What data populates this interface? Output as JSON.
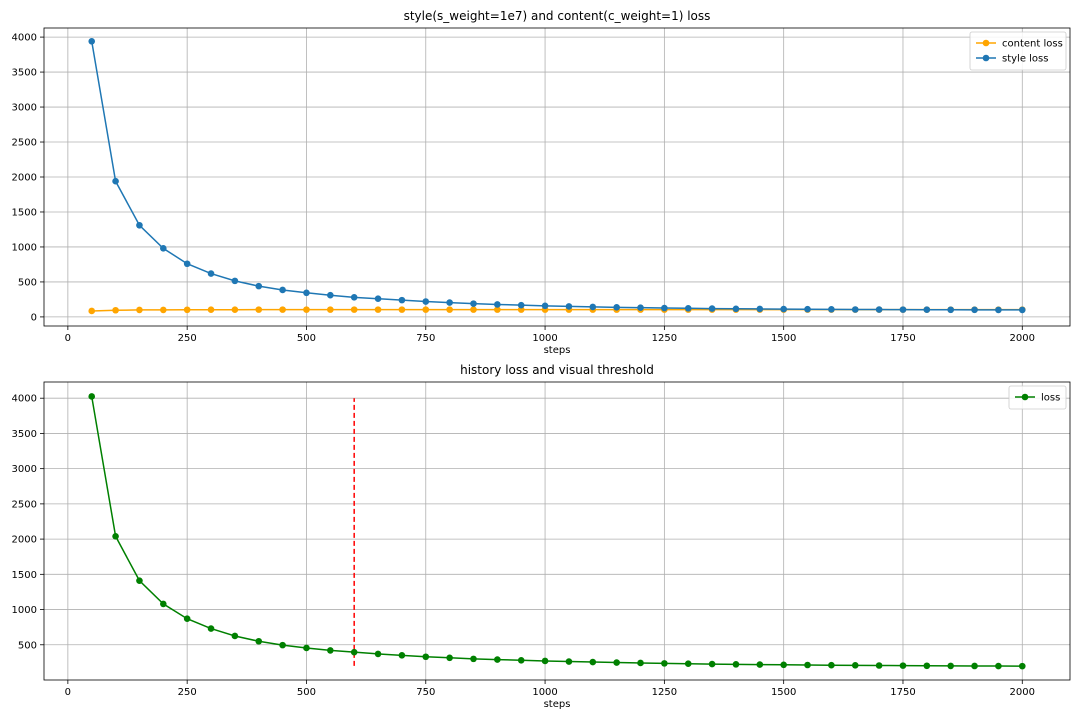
{
  "chart_data": [
    {
      "type": "line",
      "title": "style(s_weight=1e7) and content(c_weight=1) loss",
      "xlabel": "steps",
      "ylabel": "",
      "xlim": [
        -50,
        2100
      ],
      "ylim": [
        -130,
        4130
      ],
      "xticks": [
        0,
        250,
        500,
        750,
        1000,
        1250,
        1500,
        1750,
        2000
      ],
      "yticks": [
        0,
        500,
        1000,
        1500,
        2000,
        2500,
        3000,
        3500,
        4000
      ],
      "grid": true,
      "legend": "top-right",
      "x": [
        50,
        100,
        150,
        200,
        250,
        300,
        350,
        400,
        450,
        500,
        550,
        600,
        650,
        700,
        750,
        800,
        850,
        900,
        950,
        1000,
        1050,
        1100,
        1150,
        1200,
        1250,
        1300,
        1350,
        1400,
        1450,
        1500,
        1550,
        1600,
        1650,
        1700,
        1750,
        1800,
        1850,
        1900,
        1950,
        2000
      ],
      "series": [
        {
          "name": "content loss",
          "color": "#ffa500",
          "values": [
            85,
            95,
            100,
            100,
            102,
            103,
            103,
            104,
            104,
            104,
            104,
            104,
            104,
            104,
            104,
            104,
            104,
            104,
            104,
            104,
            104,
            104,
            104,
            104,
            104,
            104,
            104,
            104,
            104,
            104,
            104,
            104,
            104,
            104,
            104,
            104,
            104,
            104,
            104,
            104
          ]
        },
        {
          "name": "style loss",
          "color": "#1f77b4",
          "values": [
            3940,
            1940,
            1310,
            980,
            760,
            620,
            515,
            440,
            385,
            345,
            310,
            280,
            260,
            240,
            220,
            205,
            190,
            178,
            168,
            158,
            150,
            143,
            137,
            132,
            127,
            123,
            119,
            116,
            114,
            112,
            110,
            108,
            106,
            105,
            104,
            103,
            102,
            101,
            100,
            100
          ]
        }
      ]
    },
    {
      "type": "line",
      "title": "history loss and visual threshold",
      "xlabel": "steps",
      "ylabel": "",
      "xlim": [
        -50,
        2100
      ],
      "ylim": [
        0,
        4230
      ],
      "xticks": [
        0,
        250,
        500,
        750,
        1000,
        1250,
        1500,
        1750,
        2000
      ],
      "yticks": [
        500,
        1000,
        1500,
        2000,
        2500,
        3000,
        3500,
        4000
      ],
      "grid": true,
      "legend": "top-right",
      "x": [
        50,
        100,
        150,
        200,
        250,
        300,
        350,
        400,
        450,
        500,
        550,
        600,
        650,
        700,
        750,
        800,
        850,
        900,
        950,
        1000,
        1050,
        1100,
        1150,
        1200,
        1250,
        1300,
        1350,
        1400,
        1450,
        1500,
        1550,
        1600,
        1650,
        1700,
        1750,
        1800,
        1850,
        1900,
        1950,
        2000
      ],
      "series": [
        {
          "name": "loss",
          "color": "#008000",
          "values": [
            4025,
            2040,
            1410,
            1080,
            870,
            730,
            625,
            550,
            495,
            455,
            420,
            395,
            370,
            350,
            330,
            315,
            300,
            290,
            280,
            270,
            262,
            255,
            248,
            242,
            236,
            231,
            226,
            222,
            219,
            216,
            213,
            210,
            208,
            206,
            204,
            202,
            200,
            199,
            198,
            197
          ]
        }
      ],
      "threshold": {
        "x": 600,
        "y_range": [
          200,
          4000
        ],
        "color": "#ff0000",
        "style": "dashed"
      }
    }
  ]
}
